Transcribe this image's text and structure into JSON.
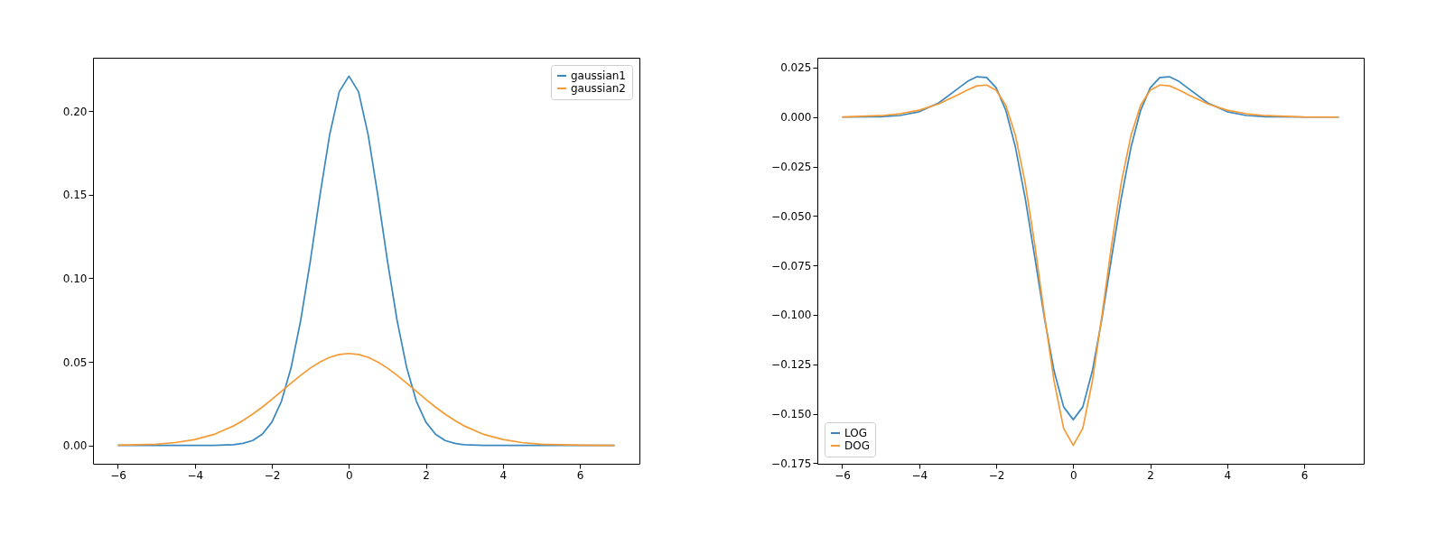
{
  "chart_data": [
    {
      "type": "line",
      "x": [
        -6,
        -5,
        -4.5,
        -4,
        -3.5,
        -3,
        -2.75,
        -2.5,
        -2.25,
        -2,
        -1.75,
        -1.5,
        -1.25,
        -1,
        -0.75,
        -0.5,
        -0.25,
        0,
        0.25,
        0.5,
        0.75,
        1,
        1.25,
        1.5,
        1.75,
        2,
        2.25,
        2.5,
        2.75,
        3,
        3.5,
        4,
        4.5,
        5,
        6,
        6.9
      ],
      "series": [
        {
          "name": "gaussian1",
          "color": "#3a88bf",
          "values": [
            0,
            0,
            0,
            0,
            0,
            0.0004,
            0.0012,
            0.0029,
            0.0067,
            0.0139,
            0.0265,
            0.0466,
            0.075,
            0.1106,
            0.1498,
            0.1859,
            0.2117,
            0.221,
            0.2117,
            0.1859,
            0.1498,
            0.1106,
            0.075,
            0.0466,
            0.0265,
            0.0139,
            0.0067,
            0.0029,
            0.0012,
            0.0004,
            0,
            0,
            0,
            0,
            0,
            0
          ]
        },
        {
          "name": "gaussian2",
          "color": "#f59a34",
          "values": [
            0.0001,
            0.0007,
            0.0017,
            0.0035,
            0.0066,
            0.0116,
            0.0149,
            0.0187,
            0.0229,
            0.0275,
            0.0324,
            0.0373,
            0.042,
            0.0463,
            0.0499,
            0.0527,
            0.0544,
            0.055,
            0.0544,
            0.0527,
            0.0499,
            0.0463,
            0.042,
            0.0373,
            0.0324,
            0.0275,
            0.0229,
            0.0187,
            0.0149,
            0.0116,
            0.0066,
            0.0035,
            0.0017,
            0.0007,
            0.0001,
            0
          ]
        }
      ],
      "xlim": [
        -6.645,
        7.545
      ],
      "xticks": [
        -6,
        -4,
        -2,
        0,
        2,
        4,
        6
      ],
      "ylim": [
        -0.011,
        0.232
      ],
      "yticks": [
        {
          "value": 0,
          "label": "0.00"
        },
        {
          "value": 0.05,
          "label": "0.05"
        },
        {
          "value": 0.1,
          "label": "0.10"
        },
        {
          "value": 0.15,
          "label": "0.15"
        },
        {
          "value": 0.2,
          "label": "0.20"
        }
      ],
      "legend": "top right",
      "grid": false
    },
    {
      "type": "line",
      "x": [
        -6,
        -5,
        -4.5,
        -4,
        -3.5,
        -3,
        -2.75,
        -2.5,
        -2.25,
        -2,
        -1.75,
        -1.5,
        -1.25,
        -1,
        -0.75,
        -0.5,
        -0.25,
        0,
        0.25,
        0.5,
        0.75,
        1,
        1.25,
        1.5,
        1.75,
        2,
        2.25,
        2.5,
        2.75,
        3,
        3.5,
        4,
        4.5,
        5,
        6,
        6.9
      ],
      "series": [
        {
          "name": "LOG",
          "color": "#3a88bf",
          "values": [
            0,
            0.0002,
            0.0008,
            0.0027,
            0.0071,
            0.0143,
            0.018,
            0.0204,
            0.02,
            0.0148,
            0.0034,
            -0.0153,
            -0.0407,
            -0.0706,
            -0.1013,
            -0.1281,
            -0.1465,
            -0.153,
            -0.1465,
            -0.1281,
            -0.1013,
            -0.0706,
            -0.0407,
            -0.0153,
            0.0034,
            0.0148,
            0.02,
            0.0204,
            0.018,
            0.0143,
            0.0071,
            0.0027,
            0.0008,
            0.0002,
            0,
            0
          ]
        },
        {
          "name": "DOG",
          "color": "#f59a34",
          "values": [
            0.0001,
            0.0007,
            0.0017,
            0.0035,
            0.0066,
            0.0112,
            0.0137,
            0.0158,
            0.0162,
            0.0136,
            0.0059,
            -0.0093,
            -0.033,
            -0.0643,
            -0.0999,
            -0.1332,
            -0.1573,
            -0.166,
            -0.1573,
            -0.1332,
            -0.0999,
            -0.0643,
            -0.033,
            -0.0093,
            0.0059,
            0.0136,
            0.0162,
            0.0158,
            0.0137,
            0.0112,
            0.0066,
            0.0035,
            0.0017,
            0.0007,
            0.0001,
            0
          ]
        }
      ],
      "xlim": [
        -6.645,
        7.545
      ],
      "xticks": [
        -6,
        -4,
        -2,
        0,
        2,
        4,
        6
      ],
      "ylim": [
        -0.1753,
        0.03
      ],
      "yticks": [
        {
          "value": -0.175,
          "label": "−0.175"
        },
        {
          "value": -0.15,
          "label": "−0.150"
        },
        {
          "value": -0.125,
          "label": "−0.125"
        },
        {
          "value": -0.1,
          "label": "−0.100"
        },
        {
          "value": -0.075,
          "label": "−0.075"
        },
        {
          "value": -0.05,
          "label": "−0.050"
        },
        {
          "value": -0.025,
          "label": "−0.025"
        },
        {
          "value": 0,
          "label": "0.000"
        },
        {
          "value": 0.025,
          "label": "0.025"
        }
      ],
      "legend": "bottom left",
      "grid": false
    }
  ]
}
